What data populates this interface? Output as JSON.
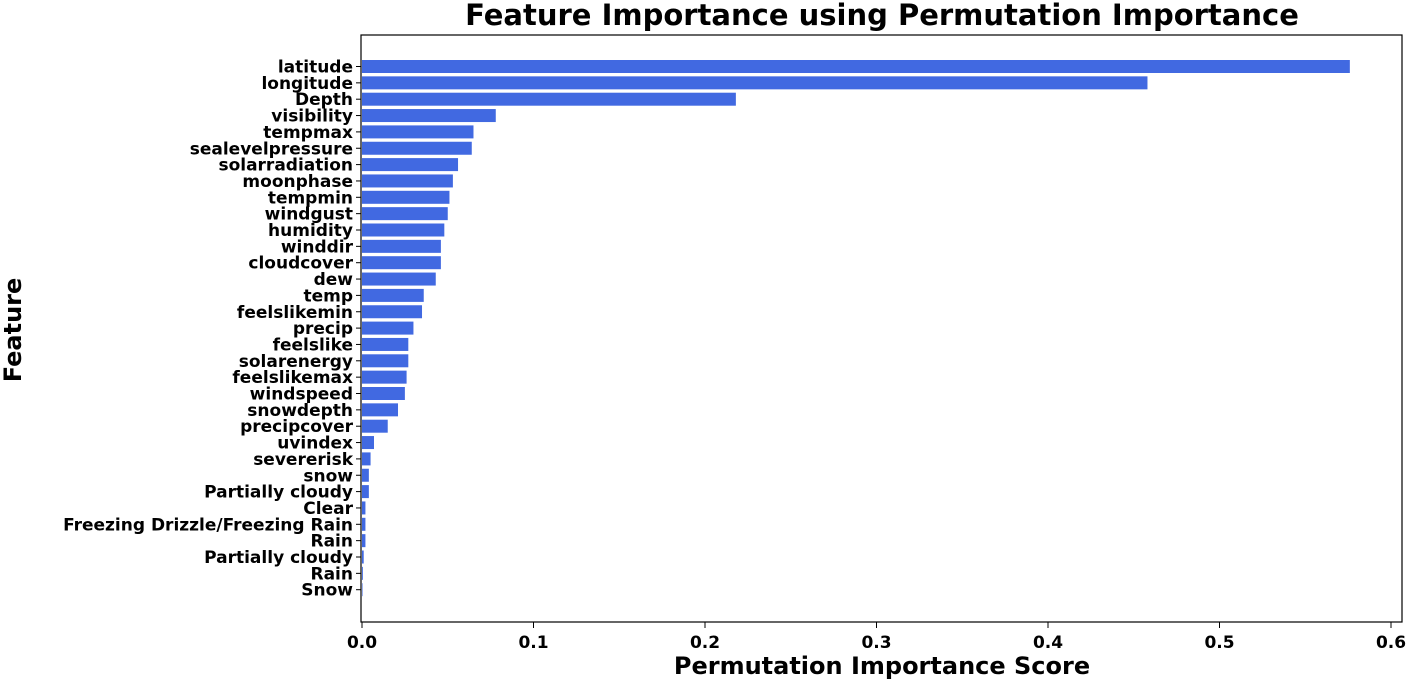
{
  "chart_data": {
    "type": "bar",
    "orientation": "horizontal",
    "title": "Feature Importance using Permutation Importance",
    "xlabel": "Permutation Importance Score",
    "ylabel": "Feature",
    "xlim": [
      0,
      0.605
    ],
    "xticks": [
      "0.0",
      "0.1",
      "0.2",
      "0.3",
      "0.4",
      "0.5",
      "0.6"
    ],
    "grid": false,
    "bar_color": "#4169E1",
    "categories": [
      "latitude",
      "longitude",
      "Depth",
      "visibility",
      "tempmax",
      "sealevelpressure",
      "solarradiation",
      "moonphase",
      "tempmin",
      "windgust",
      "humidity",
      "winddir",
      "cloudcover",
      "dew",
      "temp",
      "feelslikemin",
      "precip",
      "feelslike",
      "solarenergy",
      "feelslikemax",
      "windspeed",
      "snowdepth",
      "precipcover",
      "uvindex",
      "severerisk",
      "snow",
      "Partially cloudy",
      "Clear",
      "Freezing Drizzle/Freezing Rain",
      "Rain",
      "Partially cloudy",
      "Rain",
      "Snow"
    ],
    "values": [
      0.576,
      0.458,
      0.218,
      0.078,
      0.065,
      0.064,
      0.056,
      0.053,
      0.051,
      0.05,
      0.048,
      0.046,
      0.046,
      0.043,
      0.036,
      0.035,
      0.03,
      0.027,
      0.027,
      0.026,
      0.025,
      0.021,
      0.015,
      0.007,
      0.005,
      0.004,
      0.004,
      0.002,
      0.002,
      0.002,
      0.001,
      0.0005,
      0.0003
    ]
  }
}
